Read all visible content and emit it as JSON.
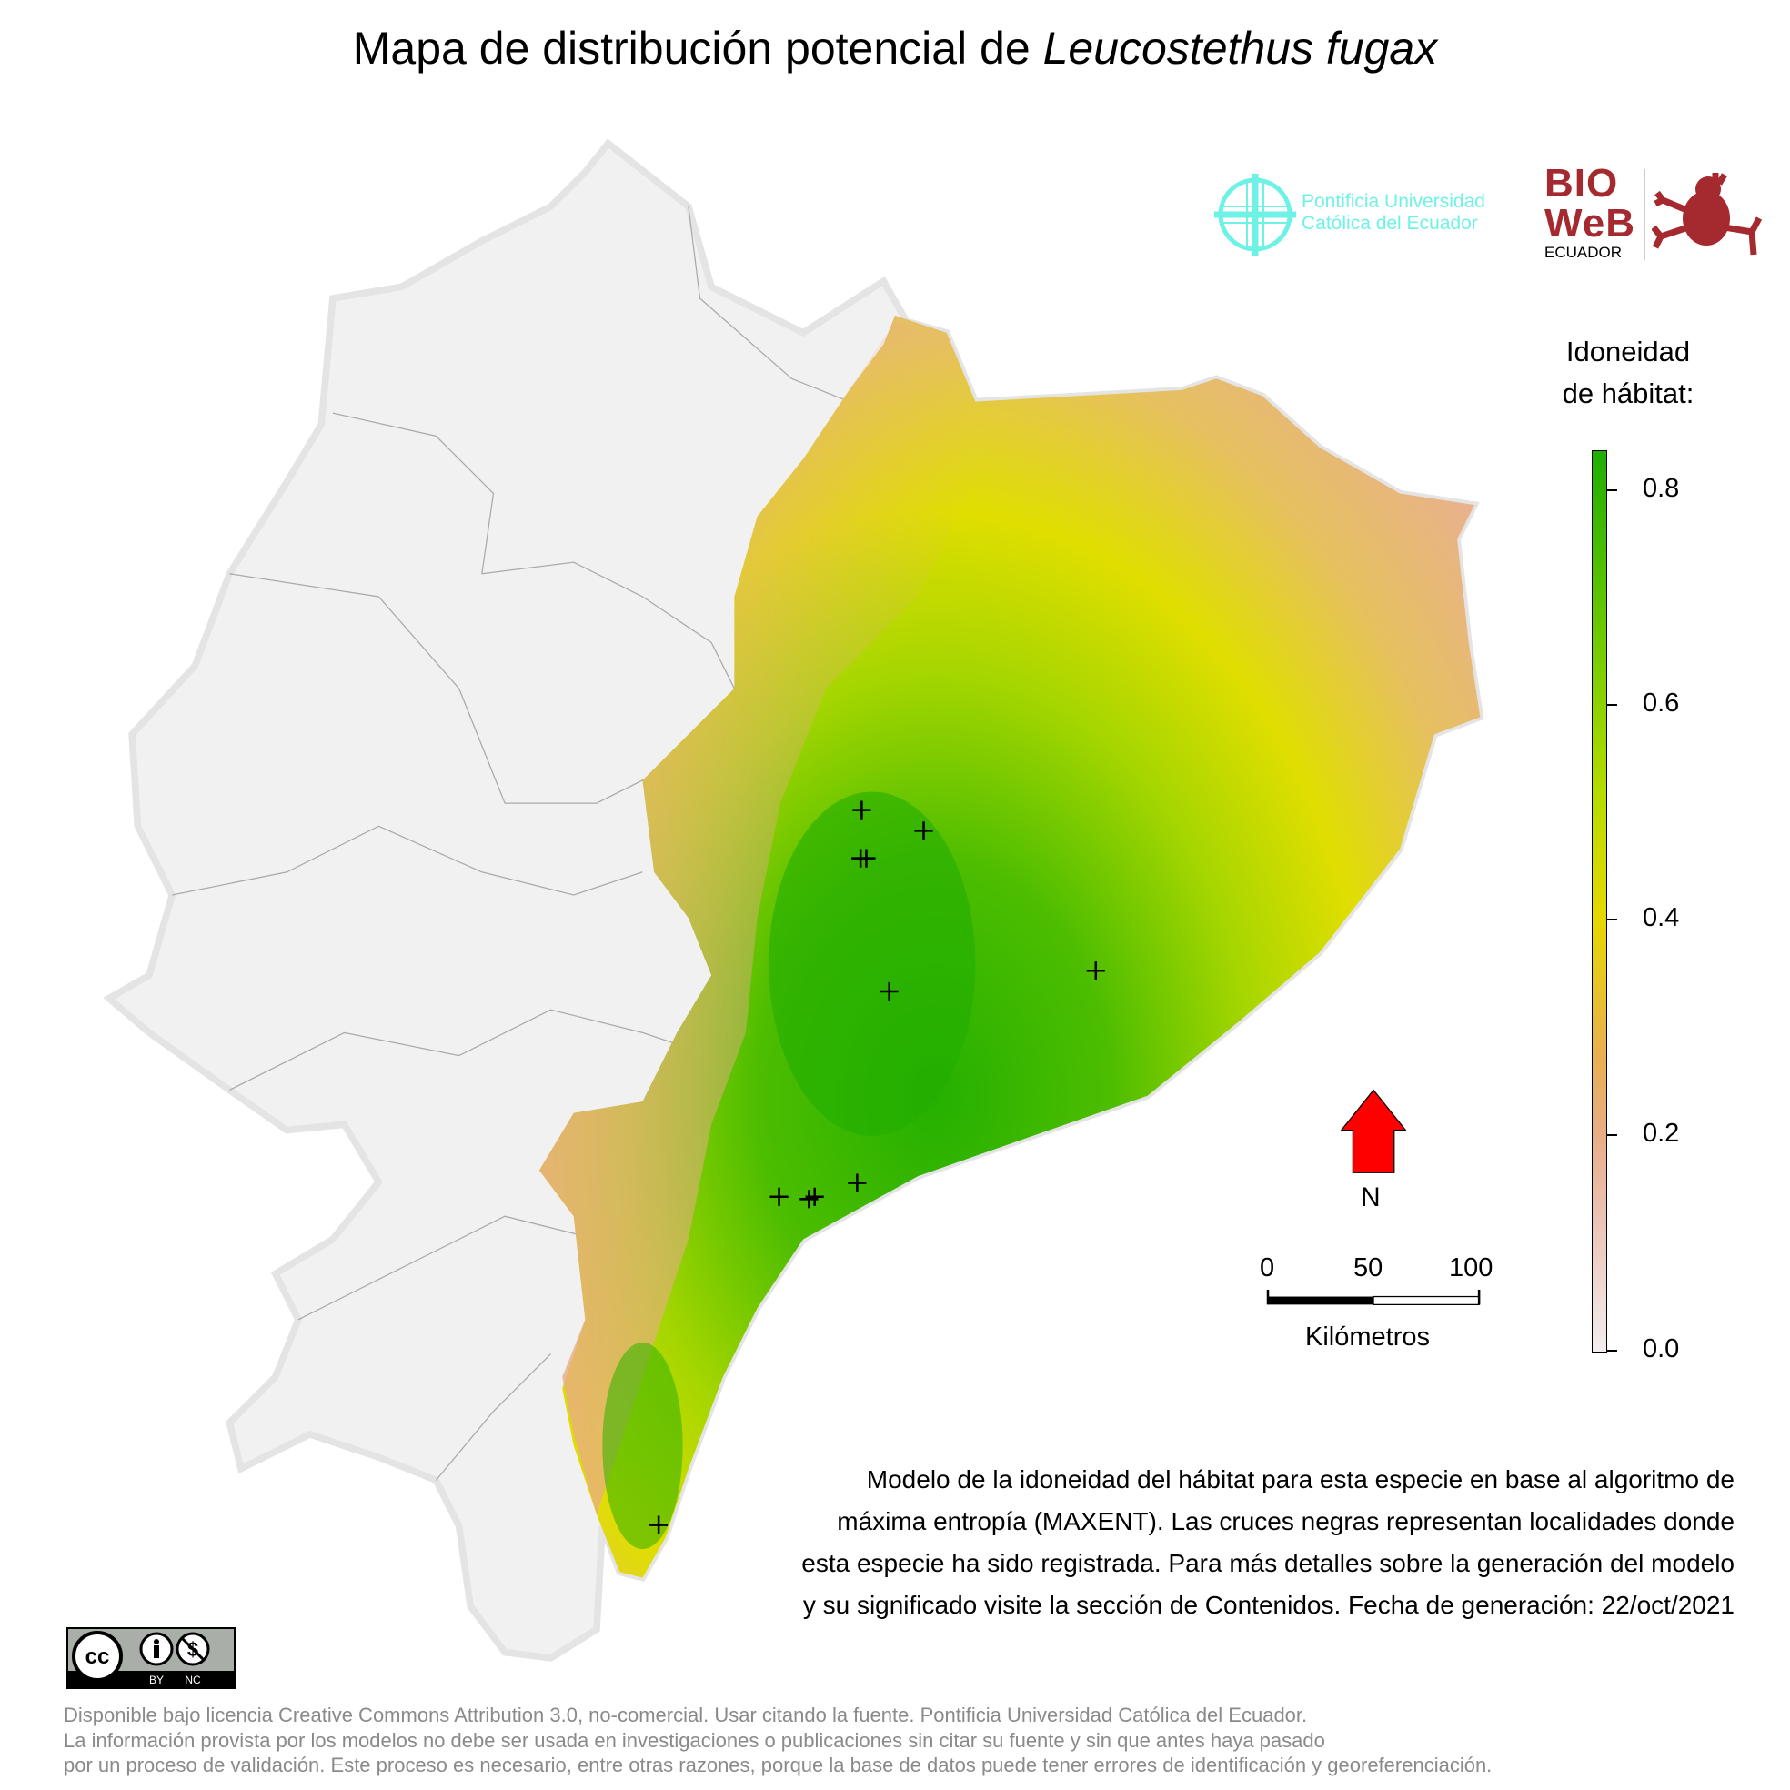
{
  "title": {
    "prefix": "Mapa de distribución potencial de ",
    "species": "Leucostethus fugax"
  },
  "logos": {
    "puce_line1": "Pontificia Universidad",
    "puce_line2": "Católica del Ecuador",
    "bioweb_line1": "BIO",
    "bioweb_line2": "WeB",
    "bioweb_line3": "ECUADOR",
    "colors": {
      "puce": "#6ff2e6",
      "bioweb": "#a52a2f"
    }
  },
  "legend": {
    "title_line1": "Idoneidad",
    "title_line2": "de hábitat:",
    "ticks": [
      "0.0",
      "0.2",
      "0.4",
      "0.6",
      "0.8"
    ],
    "range": [
      0,
      0.84
    ],
    "colors": [
      "#f2eeee",
      "#e8ad86",
      "#e6d800",
      "#74cc00",
      "#1fae00"
    ]
  },
  "north_arrow": {
    "label": "N",
    "color": "#ff0000"
  },
  "scale_bar": {
    "labels": [
      "0",
      "50",
      "100"
    ],
    "unit": "Kilómetros"
  },
  "caption": {
    "line1": "Modelo de la idoneidad del hábitat para esta especie en base al algoritmo de",
    "line2": "máxima entropía (MAXENT). Las cruces negras representan localidades donde",
    "line3": "esta especie ha sido registrada. Para más detalles sobre la generación del modelo",
    "line4": "y su significado visite la sección de Contenidos. Fecha de generación: 22/oct/2021"
  },
  "license_badge": {
    "cc": "cc",
    "by": "BY",
    "nc": "NC"
  },
  "footer": {
    "line1": "Disponible bajo licencia Creative Commons Attribution 3.0, no-comercial. Usar citando la fuente. Pontificia Universidad Católica del Ecuador.",
    "line2": "La información provista por los modelos no debe ser usada en investigaciones o publicaciones sin citar su fuente y sin que antes haya pasado",
    "line3": "por un proceso de validación. Este proceso es necesario, entre otras razones, porque la base de datos puede tener errores de identificación y georeferenciación."
  },
  "occurrence_marker": "+",
  "occurrences_count_shown": 11
}
